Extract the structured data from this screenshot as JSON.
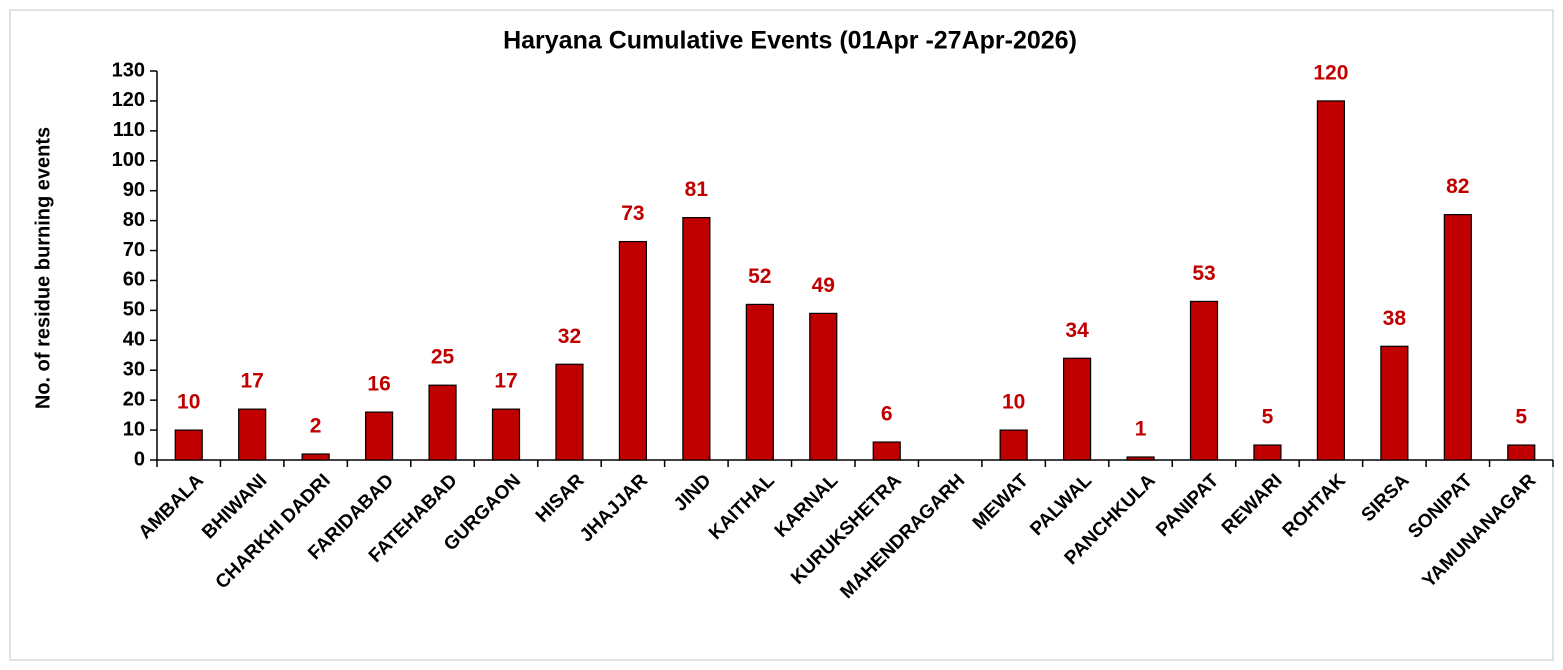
{
  "chart_data": {
    "type": "bar",
    "title": "Haryana Cumulative Events (01Apr -27Apr-2026)",
    "y_label": "No. of residue burning events",
    "categories": [
      "AMBALA",
      "BHIWANI",
      "CHARKHI DADRI",
      "FARIDABAD",
      "FATEHABAD",
      "GURGAON",
      "HISAR",
      "JHAJJAR",
      "JIND",
      "KAITHAL",
      "KARNAL",
      "KURUKSHETRA",
      "MAHENDRAGARH",
      "MEWAT",
      "PALWAL",
      "PANCHKULA",
      "PANIPAT",
      "REWARI",
      "ROHTAK",
      "SIRSA",
      "SONIPAT",
      "YAMUNANAGAR"
    ],
    "values": [
      10,
      17,
      2,
      16,
      25,
      17,
      32,
      73,
      81,
      52,
      49,
      6,
      0,
      10,
      34,
      1,
      53,
      5,
      120,
      38,
      82,
      5
    ],
    "value_labels": [
      "10",
      "17",
      "2",
      "16",
      "25",
      "17",
      "32",
      "73",
      "81",
      "52",
      "49",
      "6",
      null,
      "10",
      "34",
      "1",
      "53",
      "5",
      "120",
      "38",
      "82",
      "5"
    ],
    "color": "#c00000",
    "ylim": [
      0,
      130
    ],
    "yticks": [
      0,
      10,
      20,
      30,
      40,
      50,
      60,
      70,
      80,
      90,
      100,
      110,
      120,
      130
    ],
    "grid": false
  }
}
